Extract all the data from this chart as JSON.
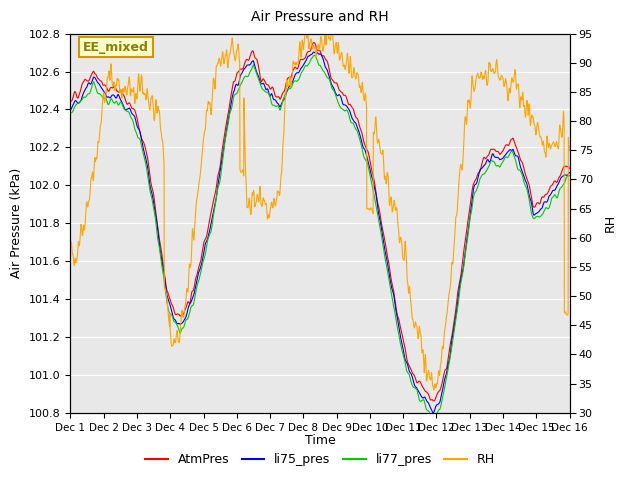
{
  "title": "Air Pressure and RH",
  "xlabel": "Time",
  "ylabel_left": "Air Pressure (kPa)",
  "ylabel_right": "RH",
  "ylim_left": [
    100.8,
    102.8
  ],
  "ylim_right": [
    30,
    95
  ],
  "xlim": [
    0,
    15
  ],
  "xtick_labels": [
    "Dec 1",
    "Dec 2",
    "Dec 3",
    "Dec 4",
    "Dec 5",
    "Dec 6",
    "Dec 7",
    "Dec 8",
    "Dec 9",
    "Dec 10",
    "Dec 11",
    "Dec 12",
    "Dec 13",
    "Dec 14",
    "Dec 15",
    "Dec 16"
  ],
  "yticks_left": [
    100.8,
    101.0,
    101.2,
    101.4,
    101.6,
    101.8,
    102.0,
    102.2,
    102.4,
    102.6,
    102.8
  ],
  "yticks_right": [
    30,
    35,
    40,
    45,
    50,
    55,
    60,
    65,
    70,
    75,
    80,
    85,
    90,
    95
  ],
  "colors": {
    "AtmPres": "#FF0000",
    "li75_pres": "#0000FF",
    "li77_pres": "#00CC00",
    "RH": "#FFA500"
  },
  "annotation_text": "EE_mixed",
  "annotation_color": "#8B8000",
  "annotation_bg": "#FFFFCC",
  "annotation_edge": "#CC9900",
  "bg_color": "#E8E8E8",
  "white_grid": "#FFFFFF",
  "pressure_key_t": [
    0,
    0.2,
    0.5,
    0.7,
    0.9,
    1.1,
    1.3,
    1.5,
    1.7,
    1.9,
    2.1,
    2.3,
    2.5,
    2.7,
    2.9,
    3.1,
    3.3,
    3.5,
    3.7,
    3.9,
    4.1,
    4.3,
    4.5,
    4.7,
    4.9,
    5.1,
    5.3,
    5.5,
    5.7,
    5.9,
    6.1,
    6.3,
    6.5,
    6.7,
    6.9,
    7.1,
    7.3,
    7.5,
    7.7,
    7.9,
    8.1,
    8.3,
    8.5,
    8.7,
    8.9,
    9.1,
    9.3,
    9.5,
    9.7,
    9.9,
    10.1,
    10.3,
    10.5,
    10.7,
    10.9,
    11.1,
    11.3,
    11.5,
    11.7,
    11.9,
    12.1,
    12.3,
    12.5,
    12.7,
    12.9,
    13.1,
    13.3,
    13.5,
    13.7,
    13.9,
    14.1,
    14.3,
    14.5,
    14.7,
    14.9,
    15.0
  ],
  "pressure_key_v": [
    102.45,
    102.48,
    102.55,
    102.6,
    102.55,
    102.5,
    102.52,
    102.5,
    102.45,
    102.4,
    102.3,
    102.15,
    101.95,
    101.7,
    101.45,
    101.35,
    101.3,
    101.35,
    101.45,
    101.6,
    101.75,
    101.9,
    102.1,
    102.35,
    102.55,
    102.6,
    102.65,
    102.7,
    102.6,
    102.55,
    102.5,
    102.45,
    102.55,
    102.6,
    102.65,
    102.7,
    102.75,
    102.72,
    102.65,
    102.55,
    102.5,
    102.45,
    102.4,
    102.3,
    102.2,
    102.05,
    101.85,
    101.65,
    101.45,
    101.25,
    101.1,
    101.0,
    100.95,
    100.9,
    100.85,
    100.9,
    101.05,
    101.25,
    101.5,
    101.75,
    102.0,
    102.1,
    102.15,
    102.2,
    102.18,
    102.22,
    102.25,
    102.15,
    102.05,
    101.9,
    101.9,
    101.95,
    102.0,
    102.05,
    102.1,
    102.1
  ],
  "rh_key_t": [
    0,
    0.1,
    0.2,
    0.4,
    0.6,
    0.8,
    1.0,
    1.2,
    1.4,
    1.6,
    1.8,
    2.0,
    2.1,
    2.2,
    2.3,
    2.5,
    2.7,
    2.8,
    2.9,
    3.0,
    3.1,
    3.2,
    3.3,
    3.5,
    3.7,
    3.9,
    4.1,
    4.3,
    4.5,
    4.7,
    4.9,
    5.0,
    5.1,
    5.2,
    5.3,
    5.5,
    5.7,
    5.9,
    6.0,
    6.1,
    6.2,
    6.3,
    6.5,
    6.7,
    6.9,
    7.0,
    7.1,
    7.2,
    7.4,
    7.6,
    7.8,
    8.0,
    8.1,
    8.2,
    8.3,
    8.5,
    8.7,
    8.9,
    9.0,
    9.1,
    9.2,
    9.3,
    9.4,
    9.5,
    9.6,
    9.7,
    9.8,
    9.9,
    10.0,
    10.1,
    10.2,
    10.3,
    10.5,
    10.7,
    10.9,
    11.0,
    11.1,
    11.2,
    11.3,
    11.5,
    11.7,
    11.9,
    12.0,
    12.1,
    12.2,
    12.3,
    12.5,
    12.7,
    12.9,
    13.0,
    13.1,
    13.2,
    13.3,
    13.5,
    13.7,
    13.9,
    14.0,
    14.1,
    14.2,
    14.3,
    14.5,
    14.7,
    14.9,
    15.0
  ],
  "rh_key_v": [
    59,
    57,
    56,
    62,
    68,
    74,
    85,
    87,
    87,
    86,
    85,
    85,
    86,
    85,
    84,
    82,
    80,
    75,
    65,
    43,
    42,
    43,
    44,
    50,
    60,
    72,
    80,
    86,
    90,
    91,
    92,
    91,
    90,
    88,
    65,
    65,
    66,
    65,
    64,
    65,
    66,
    70,
    85,
    90,
    92,
    93,
    94,
    93,
    92,
    93,
    94,
    93,
    92,
    91,
    90,
    88,
    86,
    83,
    82,
    80,
    78,
    75,
    72,
    70,
    68,
    66,
    63,
    60,
    58,
    55,
    50,
    46,
    42,
    38,
    35,
    34,
    36,
    40,
    46,
    58,
    70,
    80,
    84,
    86,
    87,
    88,
    88,
    90,
    88,
    87,
    86,
    85,
    88,
    84,
    82,
    80,
    80,
    78,
    76,
    75,
    76,
    78,
    78,
    78
  ]
}
